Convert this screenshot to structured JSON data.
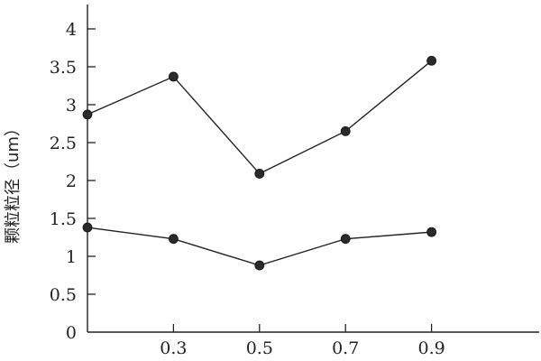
{
  "chart_data": {
    "type": "line",
    "title": "",
    "xlabel": "",
    "ylabel": "颗粒粒径（um）",
    "x_tick_labels": [
      "0.3",
      "0.5",
      "0.7",
      "0.9"
    ],
    "y_tick_labels": [
      "0",
      "0.5",
      "1",
      "1.5",
      "2",
      "2.5",
      "3",
      "3.5",
      "4"
    ],
    "xlim": [
      0.1,
      1.1
    ],
    "ylim": [
      0,
      4
    ],
    "grid": false,
    "series": [
      {
        "x": [
          0.1,
          0.3,
          0.5,
          0.7,
          0.9
        ],
        "values": [
          2.87,
          3.37,
          2.09,
          2.65,
          3.58
        ]
      },
      {
        "x": [
          0.1,
          0.3,
          0.5,
          0.7,
          0.9
        ],
        "values": [
          1.38,
          1.23,
          0.88,
          1.23,
          1.32
        ]
      }
    ],
    "colors": {
      "line": "#222222",
      "marker": "#2a2a2a"
    }
  }
}
